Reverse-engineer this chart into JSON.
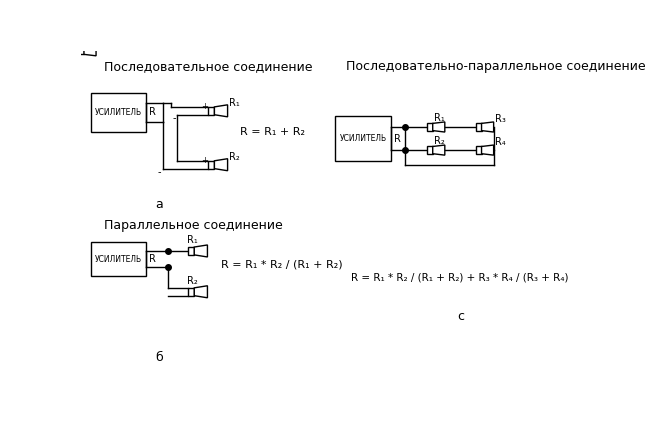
{
  "bg_color": "#ffffff",
  "title_a": "Последовательное соединение",
  "title_b": "Параллельное соединение",
  "title_c": "Последовательно-параллельное соединение",
  "label_amp": "УСИЛИТЕЛЬ",
  "label_R": "R",
  "formula_a": "R = R₁ + R₂",
  "formula_b": "R = R₁ * R₂ / (R₁ + R₂)",
  "formula_c": "R = R₁ * R₂ / (R₁ + R₂) + R₃ * R₄ / (R₃ + R₄)",
  "label_a": "a",
  "label_b": "б",
  "label_c": "c",
  "font_size_title": 9,
  "font_size_formula": 8
}
